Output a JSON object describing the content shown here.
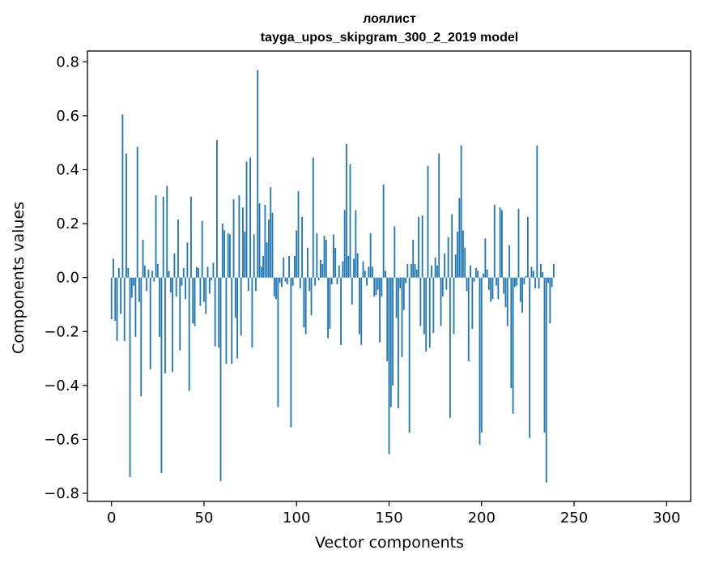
{
  "chart_data": {
    "type": "bar",
    "title": "лоялист",
    "subtitle": "tayga_upos_skipgram_300_2_2019 model",
    "xlabel": "Vector components",
    "ylabel": "Components values",
    "xlim": [
      -13,
      313
    ],
    "ylim": [
      -0.83,
      0.84
    ],
    "xticks": [
      0,
      50,
      100,
      150,
      200,
      250,
      300
    ],
    "xtick_labels": [
      "0",
      "50",
      "100",
      "150",
      "200",
      "250",
      "300"
    ],
    "yticks": [
      -0.8,
      -0.6,
      -0.4,
      -0.2,
      0.0,
      0.2,
      0.4,
      0.6,
      0.8
    ],
    "ytick_labels": [
      "−0.8",
      "−0.6",
      "−0.4",
      "−0.2",
      "0.0",
      "0.2",
      "0.4",
      "0.6",
      "0.8"
    ],
    "bar_color": "#1f77b4",
    "grid": false,
    "values": [
      -0.155,
      0.07,
      -0.16,
      -0.235,
      0.035,
      -0.135,
      0.605,
      -0.235,
      0.46,
      0.035,
      -0.74,
      -0.075,
      -0.03,
      -0.22,
      0.485,
      -0.09,
      -0.44,
      0.14,
      0.045,
      -0.05,
      0.03,
      -0.34,
      0.025,
      -0.015,
      0.305,
      0.05,
      -0.22,
      -0.725,
      0.3,
      -0.355,
      0.34,
      0.025,
      -0.055,
      -0.35,
      0.09,
      -0.07,
      0.215,
      -0.27,
      -0.03,
      0.035,
      -0.08,
      0.13,
      -0.42,
      0.3,
      -0.17,
      -0.18,
      0.04,
      0.035,
      -0.105,
      0.21,
      -0.09,
      -0.135,
      0.04,
      -0.06,
      -0.01,
      0.055,
      -0.255,
      0.51,
      -0.26,
      -0.755,
      0.2,
      0.175,
      -0.32,
      0.165,
      0.16,
      -0.32,
      0.29,
      -0.15,
      -0.3,
      0.305,
      -0.215,
      0.26,
      0.17,
      0.43,
      -0.05,
      0.445,
      -0.26,
      0.16,
      -0.05,
      0.77,
      0.275,
      0.04,
      0.08,
      0.27,
      0.13,
      0.215,
      0.335,
      0.24,
      -0.07,
      -0.08,
      -0.48,
      -0.02,
      -0.035,
      0.075,
      -0.015,
      -0.025,
      0.08,
      -0.555,
      -0.03,
      0.08,
      0.175,
      0.32,
      -0.04,
      0.225,
      -0.185,
      -0.21,
      0.11,
      -0.05,
      -0.14,
      0.445,
      -0.03,
      0.165,
      -0.01,
      0.065,
      0.05,
      0.155,
      0.14,
      -0.225,
      -0.19,
      -0.025,
      0.16,
      0.11,
      -0.025,
      0.045,
      -0.25,
      0.06,
      0.25,
      0.495,
      0.08,
      0.42,
      -0.1,
      0.07,
      0.25,
      0.09,
      -0.21,
      -0.25,
      0.06,
      0.025,
      -0.03,
      0.04,
      0.165,
      0.04,
      -0.07,
      -0.065,
      -0.045,
      -0.24,
      -0.07,
      0.345,
      0.025,
      -0.31,
      -0.655,
      -0.48,
      -0.4,
      0.19,
      -0.15,
      -0.485,
      -0.04,
      -0.295,
      -0.12,
      -0.02,
      0.05,
      -0.575,
      0.05,
      0.14,
      0.05,
      0.03,
      0.225,
      -0.18,
      0.23,
      -0.21,
      -0.275,
      0.415,
      -0.26,
      0.045,
      -0.205,
      0.075,
      0.045,
      0.46,
      -0.18,
      -0.07,
      0.09,
      -0.045,
      0.15,
      -0.52,
      0.235,
      -0.21,
      0.085,
      0.17,
      0.295,
      0.49,
      0.175,
      0.11,
      -0.05,
      -0.31,
      0.045,
      -0.19,
      -0.015,
      0.035,
      0.025,
      -0.62,
      -0.575,
      0.015,
      0.145,
      0.03,
      -0.045,
      -0.09,
      -0.08,
      0.27,
      -0.03,
      -0.08,
      0.26,
      0.25,
      -0.06,
      -0.11,
      -0.18,
      0.12,
      -0.41,
      -0.505,
      -0.035,
      -0.03,
      0.255,
      -0.09,
      -0.13,
      -0.025,
      0.005,
      0.225,
      -0.595,
      0.04,
      0.025,
      -0.04,
      0.49,
      -0.04,
      0.05,
      0.02,
      -0.575,
      -0.76,
      -0.02,
      -0.17,
      -0.035,
      0.05
    ]
  }
}
